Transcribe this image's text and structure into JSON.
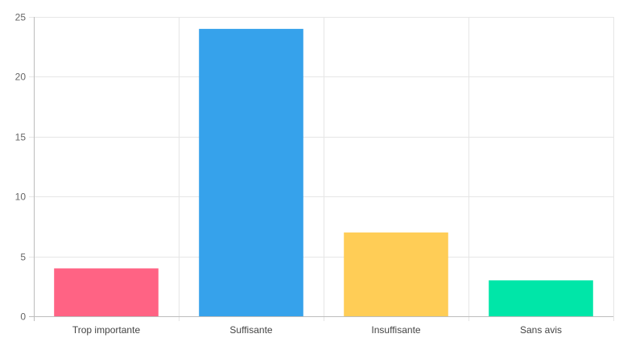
{
  "chart_data": {
    "type": "bar",
    "categories": [
      "Trop importante",
      "Suffisante",
      "Insuffisante",
      "Sans avis"
    ],
    "values": [
      4,
      24,
      7,
      3
    ],
    "colors": [
      "#ff6384",
      "#36a2eb",
      "#ffcd56",
      "#00e6a8"
    ],
    "ylim": [
      0,
      25
    ],
    "yticks": [
      0,
      5,
      10,
      15,
      20,
      25
    ],
    "grid": true,
    "legend": "none"
  }
}
